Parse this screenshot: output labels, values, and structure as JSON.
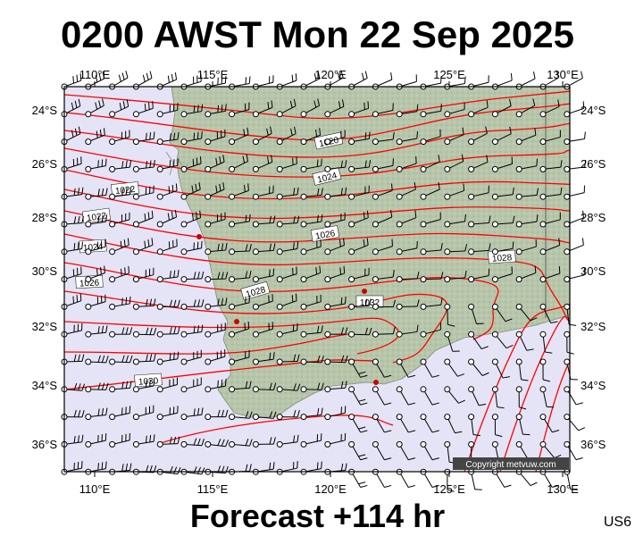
{
  "header": {
    "title": "0200 AWST Mon 22 Sep 2025"
  },
  "footer": {
    "forecast": "Forecast +114 hr",
    "code": "US6"
  },
  "map": {
    "lon_labels": [
      "110°E",
      "115°E",
      "120°E",
      "125°E",
      "130°E"
    ],
    "lat_labels": [
      "24°S",
      "26°S",
      "28°S",
      "30°S",
      "32°S",
      "34°S",
      "36°S"
    ],
    "isobar_labels": [
      "1020",
      "1022",
      "1024",
      "1024",
      "1026",
      "1026",
      "1028",
      "1028",
      "1030",
      "1032",
      "1022"
    ],
    "copyright": "Copyright metvuw.com",
    "colors": {
      "ocean": "#e4e4f6",
      "land": "#b9c8ac",
      "isobar": "#ff0000",
      "barb": "#000000",
      "city": "#cc0000"
    }
  }
}
